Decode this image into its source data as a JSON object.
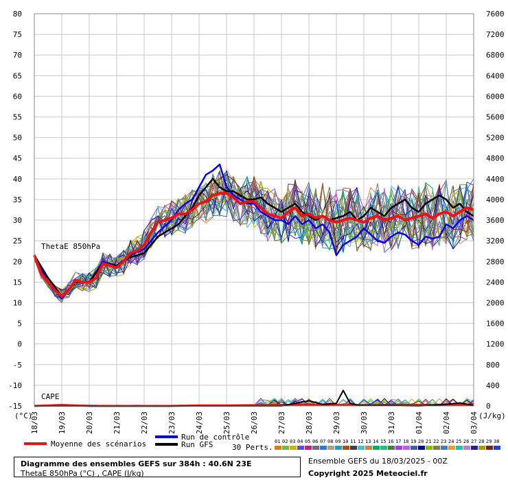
{
  "chart_data": {
    "type": "line",
    "left_axis": {
      "label": "(°C)",
      "ticks": [
        80,
        75,
        70,
        65,
        60,
        55,
        50,
        45,
        40,
        35,
        30,
        25,
        20,
        15,
        10,
        5,
        0,
        -5,
        -10,
        -15
      ],
      "ylim": [
        -15,
        80
      ]
    },
    "right_axis": {
      "label": "(J/kg)",
      "ticks": [
        7600,
        7200,
        6800,
        6400,
        6000,
        5600,
        5200,
        4800,
        4400,
        4000,
        3600,
        3200,
        2800,
        2400,
        2000,
        1600,
        1200,
        800,
        400,
        0
      ]
    },
    "x_ticks": [
      "18/03",
      "19/03",
      "20/03",
      "21/03",
      "22/03",
      "23/03",
      "24/03",
      "25/03",
      "26/03",
      "27/03",
      "28/03",
      "29/03",
      "30/03",
      "31/03",
      "01/04",
      "02/04",
      "03/04"
    ],
    "x_unit": "forecast day",
    "labels": {
      "thetae": "ThetaE 850hPa",
      "cape": "CAPE"
    },
    "thetae_mean": {
      "name": "Moyenne des scénarios",
      "x": [
        0,
        0.25,
        0.5,
        0.75,
        1.0,
        1.25,
        1.5,
        1.75,
        2.0,
        2.25,
        2.5,
        2.75,
        3.0,
        3.25,
        3.5,
        3.75,
        4.0,
        4.25,
        4.5,
        4.75,
        5.0,
        5.25,
        5.5,
        5.75,
        6.0,
        6.25,
        6.5,
        6.75,
        7.0,
        7.25,
        7.5,
        7.75,
        8.0,
        8.25,
        8.5,
        8.75,
        9.0,
        9.25,
        9.5,
        9.75,
        10.0,
        10.25,
        10.5,
        10.75,
        11.0,
        11.25,
        11.5,
        11.75,
        12.0,
        12.25,
        12.5,
        12.75,
        13.0,
        13.25,
        13.5,
        13.75,
        14.0,
        14.25,
        14.5,
        14.75,
        15.0,
        15.25,
        15.5,
        15.75,
        16.0
      ],
      "y": [
        21.5,
        17,
        15,
        13,
        11.5,
        13,
        15.5,
        15,
        15,
        16,
        19.5,
        19,
        18.5,
        20,
        22,
        22.5,
        24,
        27,
        29.5,
        30,
        30.5,
        31.5,
        31.5,
        32.5,
        34,
        34.5,
        36,
        36.5,
        36.5,
        35.5,
        34,
        34.5,
        34.5,
        33,
        31.5,
        31,
        30.5,
        32,
        33,
        31,
        31.5,
        30.5,
        31,
        30,
        29.5,
        30,
        30.5,
        30,
        29.5,
        30.5,
        31,
        30,
        30.5,
        31,
        30,
        30.5,
        31,
        31.5,
        30.5,
        31.5,
        32,
        31,
        32,
        33,
        32.5
      ]
    },
    "thetae_control": {
      "name": "Run de contrôle",
      "x": [
        0,
        0.5,
        1.0,
        1.5,
        2.0,
        2.5,
        3.0,
        3.5,
        4.0,
        4.5,
        5.0,
        5.25,
        5.5,
        5.75,
        6.0,
        6.25,
        6.5,
        6.75,
        7.0,
        7.25,
        7.5,
        7.75,
        8.0,
        8.25,
        8.5,
        8.75,
        9.0,
        9.25,
        9.5,
        9.75,
        10.0,
        10.25,
        10.5,
        10.75,
        11.0,
        11.25,
        11.5,
        11.75,
        12.0,
        12.25,
        12.5,
        12.75,
        13.0,
        13.25,
        13.5,
        13.75,
        14.0,
        14.25,
        14.5,
        14.75,
        15.0,
        15.25,
        15.5,
        15.75,
        16.0
      ],
      "y": [
        21.5,
        15,
        11,
        15,
        15,
        20,
        19,
        21.5,
        23,
        27,
        30,
        32.5,
        34,
        35,
        38,
        41,
        42,
        43.5,
        38,
        36,
        35,
        34,
        34,
        32,
        31,
        30,
        30,
        29,
        31,
        29,
        30,
        28,
        29,
        27,
        21.5,
        24,
        25,
        26,
        28,
        26.5,
        25,
        24.5,
        26,
        27,
        26.5,
        25,
        24,
        26,
        25.5,
        26,
        29,
        28,
        30,
        31,
        30
      ]
    },
    "thetae_gfs": {
      "name": "Run GFS",
      "x": [
        0,
        0.5,
        1.0,
        1.5,
        2.0,
        2.5,
        3.0,
        3.5,
        4.0,
        4.5,
        5.0,
        5.25,
        5.5,
        5.75,
        6.0,
        6.25,
        6.5,
        6.75,
        7.0,
        7.25,
        7.5,
        7.75,
        8.0,
        8.25,
        8.5,
        8.75,
        9.0,
        9.25,
        9.5,
        9.75,
        10.0,
        10.25,
        10.5,
        10.75,
        11.0,
        11.25,
        11.5,
        11.75,
        12.0,
        12.25,
        12.5,
        12.75,
        13.0,
        13.25,
        13.5,
        13.75,
        14.0,
        14.25,
        14.5,
        14.75,
        15.0,
        15.25,
        15.5,
        15.75,
        16.0
      ],
      "y": [
        21.5,
        16,
        11.5,
        15,
        15,
        19.5,
        19,
        21,
        22,
        26,
        28,
        29,
        31,
        33,
        36,
        38,
        40,
        38,
        37,
        37,
        36,
        35,
        35,
        35.5,
        34,
        33,
        32,
        33,
        34,
        32,
        31,
        30,
        31,
        30,
        30.5,
        31,
        32,
        30,
        31,
        33,
        32,
        31,
        33,
        34,
        35,
        33,
        32,
        34,
        35,
        36,
        35,
        33,
        34,
        32,
        31
      ]
    },
    "thetae_members_count": 30,
    "cape_mean": {
      "x": [
        0,
        1,
        2,
        3,
        4,
        5,
        6,
        7,
        8,
        9,
        10,
        11,
        12,
        13,
        14,
        15,
        16
      ],
      "y": [
        0,
        20,
        0,
        0,
        0,
        0,
        10,
        10,
        15,
        20,
        25,
        20,
        15,
        20,
        20,
        25,
        25
      ]
    },
    "cape_gfs": {
      "x": [
        0,
        5,
        9,
        9.5,
        10,
        10.5,
        11,
        11.25,
        11.5,
        11.75,
        12,
        13,
        14,
        15,
        15.5,
        16
      ],
      "y": [
        0,
        0,
        0,
        50,
        100,
        30,
        50,
        300,
        50,
        20,
        10,
        10,
        0,
        30,
        60,
        10
      ]
    },
    "legend": {
      "mean": "Moyenne des scénarios",
      "control": "Run de contrôle",
      "gfs": "Run GFS",
      "perts": "30 Perts.",
      "pert_numbers": [
        "01",
        "02",
        "03",
        "04",
        "05",
        "06",
        "07",
        "08",
        "09",
        "10",
        "11",
        "12",
        "13",
        "14",
        "15",
        "16",
        "17",
        "18",
        "19",
        "20",
        "21",
        "22",
        "23",
        "24",
        "25",
        "26",
        "27",
        "28",
        "29",
        "30"
      ],
      "pert_colors": [
        "#e07a10",
        "#7ab450",
        "#d0b000",
        "#6050c0",
        "#c02080",
        "#707070",
        "#2080e0",
        "#b0a080",
        "#20a0c0",
        "#b05010",
        "#404040",
        "#40c0e0",
        "#d08040",
        "#00b060",
        "#20c080",
        "#408040",
        "#a040e0",
        "#c060e0",
        "#4060a0",
        "#0000a0",
        "#80c000",
        "#808040",
        "#4080c0",
        "#e0a020",
        "#20c0b0",
        "#c080c0",
        "#2020a0",
        "#a0a000",
        "#802020",
        "#2040e0"
      ]
    }
  },
  "info": {
    "line1": "Diagramme des ensembles GEFS sur 384h : 40.6N 23E",
    "line2": "ThetaE 850hPa (°C) , CAPE (J/kg)",
    "run": "Ensemble GEFS du 18/03/2025 - 00Z",
    "copyright": "Copyright 2025 Meteociel.fr"
  }
}
